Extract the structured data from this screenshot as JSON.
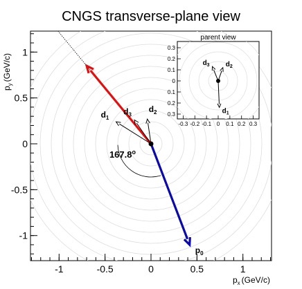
{
  "chart_data": {
    "type": "vector-plot",
    "title": "CNGS transverse-plane view",
    "xlabel": {
      "main": "p",
      "sub": "x",
      "unit": "(GeV/c)"
    },
    "ylabel": {
      "main": "p",
      "sub": "y",
      "unit": "(GeV/c)"
    },
    "xlim": [
      -1.3,
      1.3
    ],
    "ylim": [
      -1.3,
      1.3
    ],
    "xticks": [
      -1,
      -0.5,
      0,
      0.5,
      1
    ],
    "xtick_labels": [
      "-1",
      "-0.5",
      "0",
      "0.5",
      "1"
    ],
    "yticks": [
      -1,
      -0.5,
      0,
      0.5,
      1
    ],
    "ytick_labels": [
      "-1",
      "-0.5",
      "0",
      "0.5",
      "1"
    ],
    "grid_circles": true,
    "vectors": [
      {
        "name": "p",
        "sub": "0",
        "dx": 0.42,
        "dy": -1.1,
        "color": "#0a0aa8",
        "labeled": true
      },
      {
        "name": "",
        "sub": "",
        "dx": -0.7,
        "dy": 0.85,
        "color": "#e01010",
        "labeled": false
      },
      {
        "name": "d",
        "sub": "1",
        "dx": -0.38,
        "dy": 0.24,
        "color": "#000000",
        "labeled": true
      },
      {
        "name": "d",
        "sub": "3",
        "dx": -0.18,
        "dy": 0.26,
        "color": "#000000",
        "labeled": true
      },
      {
        "name": "d",
        "sub": "2",
        "dx": -0.04,
        "dy": 0.27,
        "color": "#000000",
        "labeled": true
      }
    ],
    "opening_angle_label": "167.8",
    "opening_angle_unit": "o",
    "inset": {
      "title": "parent view",
      "xlim": [
        -0.35,
        0.35
      ],
      "ylim": [
        -0.35,
        0.35
      ],
      "xticks": [
        -0.3,
        -0.2,
        -0.1,
        0,
        0.1,
        0.2,
        0.3
      ],
      "xtick_labels": [
        "-0.3",
        "-0.2",
        "-0.1",
        "0",
        "0.1",
        "0.2",
        "0.3"
      ],
      "yticks": [
        0.3,
        0.2,
        0.1,
        0,
        0.1,
        0.2,
        0.3
      ],
      "ytick_labels": [
        "0.3",
        "0.2",
        "0.1",
        "0",
        "0.1",
        "0.2",
        "0.3"
      ],
      "vectors": [
        {
          "name": "d",
          "sub": "3",
          "dx": -0.05,
          "dy": 0.13
        },
        {
          "name": "d",
          "sub": "2",
          "dx": 0.04,
          "dy": 0.12
        },
        {
          "name": "d",
          "sub": "1",
          "dx": 0.01,
          "dy": -0.24
        }
      ]
    }
  }
}
